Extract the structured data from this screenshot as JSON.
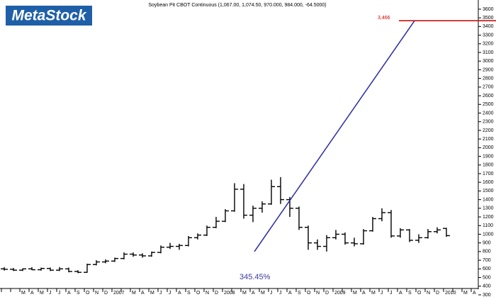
{
  "chart_data": {
    "type": "ohlc",
    "logo": "MetaStock",
    "title": "Soybean Pit CBOT Continuous (1,067.00, 1,074.50, 970.000, 984.000, -64.5000)",
    "categories": [
      null,
      null,
      "M",
      "A",
      "M",
      "J",
      "J",
      "A",
      "S",
      "O",
      "N",
      "D",
      "2007",
      null,
      "M",
      "A",
      "M",
      "J",
      "J",
      "A",
      "S",
      "O",
      "N",
      "D",
      "2008",
      null,
      "M",
      "A",
      "M",
      "J",
      "J",
      "A",
      "S",
      "O",
      "N",
      "D",
      "2009",
      null,
      "M",
      "A",
      "M",
      "J",
      "J",
      "A",
      "S",
      "O",
      "N",
      "D",
      "2010",
      null,
      "M",
      "A"
    ],
    "open": [
      600,
      595,
      585,
      600,
      590,
      605,
      585,
      600,
      570,
      560,
      650,
      680,
      690,
      720,
      770,
      760,
      750,
      790,
      850,
      860,
      870,
      960,
      990,
      1080,
      1150,
      1270,
      1520,
      1220,
      1300,
      1350,
      1550,
      1400,
      1300,
      1080,
      900,
      860,
      960,
      1000,
      900,
      890,
      1040,
      1180,
      1250,
      980,
      1050,
      930,
      960,
      1030,
      1067,
      null,
      null,
      null
    ],
    "high": [
      620,
      610,
      605,
      620,
      615,
      615,
      620,
      615,
      585,
      660,
      700,
      710,
      730,
      790,
      790,
      780,
      800,
      870,
      900,
      890,
      980,
      1010,
      1100,
      1200,
      1290,
      1590,
      1580,
      1330,
      1380,
      1630,
      1660,
      1430,
      1320,
      1100,
      940,
      990,
      1050,
      1020,
      960,
      1060,
      1200,
      1300,
      1280,
      1070,
      1060,
      1000,
      1060,
      1080,
      1074.5,
      null,
      null,
      null
    ],
    "low": [
      580,
      575,
      575,
      585,
      580,
      575,
      575,
      560,
      550,
      555,
      640,
      665,
      680,
      710,
      740,
      730,
      740,
      780,
      830,
      820,
      860,
      940,
      980,
      1070,
      1140,
      1260,
      1180,
      1140,
      1250,
      1340,
      1350,
      1200,
      1050,
      820,
      820,
      800,
      940,
      880,
      860,
      880,
      1030,
      1150,
      960,
      960,
      910,
      900,
      950,
      1010,
      970,
      null,
      null,
      null
    ],
    "close": [
      595,
      585,
      600,
      590,
      605,
      585,
      600,
      570,
      560,
      650,
      680,
      690,
      720,
      770,
      760,
      750,
      790,
      850,
      860,
      870,
      960,
      990,
      1080,
      1150,
      1270,
      1520,
      1220,
      1300,
      1350,
      1550,
      1400,
      1300,
      1080,
      900,
      860,
      960,
      1000,
      900,
      890,
      1040,
      1180,
      1250,
      980,
      1050,
      930,
      960,
      1030,
      1050,
      984,
      null,
      null,
      null
    ],
    "color": "#000000",
    "projection": {
      "start_value": 800,
      "end_value": 3466,
      "end_label": "3,466",
      "percent_label": "345.45%",
      "color": "#2a2aa8",
      "target_color": "#c00000"
    },
    "ylim": [
      275,
      3706
    ],
    "yticks": [
      300,
      400,
      500,
      600,
      700,
      800,
      900,
      1000,
      1100,
      1200,
      1300,
      1400,
      1500,
      1600,
      1700,
      1800,
      1900,
      2000,
      2100,
      2200,
      2300,
      2400,
      2500,
      2600,
      2700,
      2800,
      2900,
      3000,
      3100,
      3200,
      3300,
      3400,
      3500,
      3600
    ]
  }
}
